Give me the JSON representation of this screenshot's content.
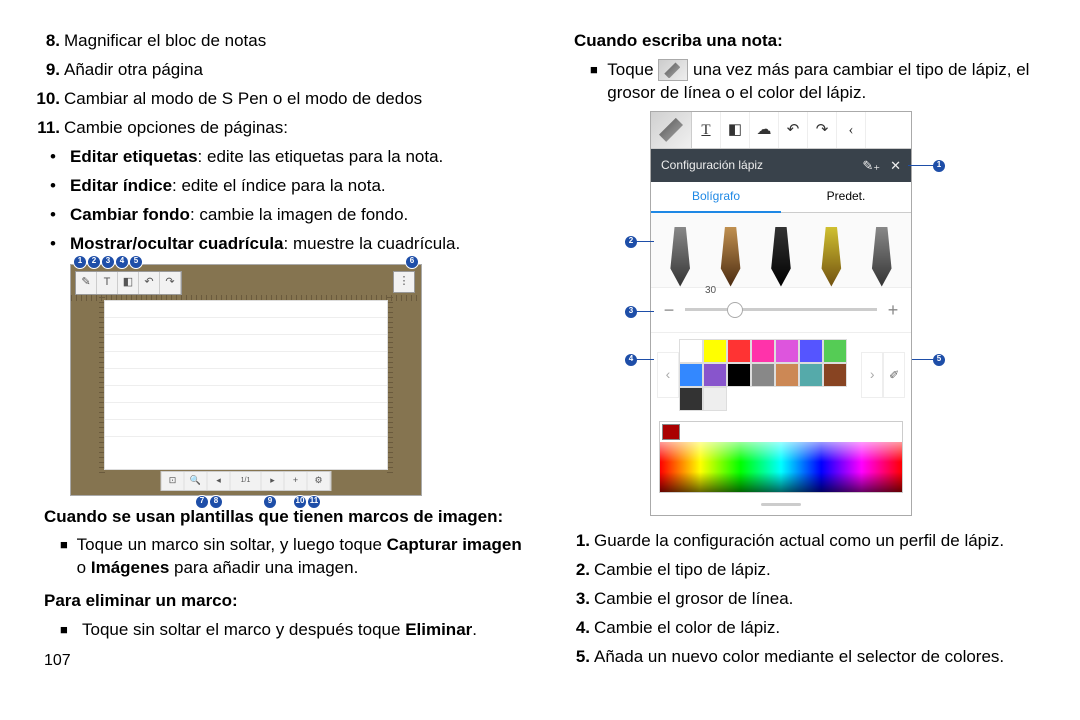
{
  "left": {
    "items": [
      {
        "n": "8",
        "txt": "Magnificar el bloc de notas"
      },
      {
        "n": "9",
        "txt": "Añadir otra página"
      },
      {
        "n": "10",
        "txt": "Cambiar al modo de S Pen o el modo de dedos"
      },
      {
        "n": "11",
        "txt": "Cambie opciones de páginas:"
      }
    ],
    "sub": [
      {
        "b": "Editar etiquetas",
        "t": ": edite las etiquetas para la nota."
      },
      {
        "b": "Editar índice",
        "t": ": edite el índice para la nota."
      },
      {
        "b": "Cambiar fondo",
        "t": ": cambie la imagen de fondo."
      },
      {
        "b": "Mostrar/ocultar cuadrícula",
        "t": ": muestre la cuadrícula."
      }
    ],
    "head1": "Cuando se usan plantillas que tienen marcos de imagen:",
    "sq1_a": "Toque un marco sin soltar, y luego toque ",
    "sq1_b": "Capturar imagen",
    "sq1_c": " o ",
    "sq1_d": "Imágenes",
    "sq1_e": " para añadir una imagen.",
    "head2": "Para eliminar un marco:",
    "sq2_a": "Toque sin soltar el marco y después toque ",
    "sq2_b": "Eliminar",
    "sq2_c": ".",
    "pagenum": "107"
  },
  "right": {
    "head": "Cuando escriba una nota:",
    "sq_a": "Toque ",
    "sq_b": " una vez más para cambiar el tipo de lápiz, el grosor de línea o el color del lápiz.",
    "ol": [
      {
        "n": "1",
        "t": "Guarde la configuración actual como un perfil de lápiz."
      },
      {
        "n": "2",
        "t": "Cambie el tipo de lápiz."
      },
      {
        "n": "3",
        "t": "Cambie el grosor de línea."
      },
      {
        "n": "4",
        "t": "Cambie el color de lápiz."
      },
      {
        "n": "5",
        "t": "Añada un nuevo color mediante el selector de colores."
      }
    ]
  },
  "pen": {
    "title": "Configuración lápiz",
    "tab1": "Bolígrafo",
    "tab2": "Predet.",
    "thickness": "30",
    "colors": [
      "#ffffff",
      "#ffff00",
      "#ff3333",
      "#ff33aa",
      "#dd55dd",
      "#5555ff",
      "#55cc55",
      "#3388ff",
      "#8855cc",
      "#000000",
      "#888888",
      "#cc8855",
      "#55aaaa",
      "#884422",
      "#333333",
      "#eeeeee"
    ]
  }
}
